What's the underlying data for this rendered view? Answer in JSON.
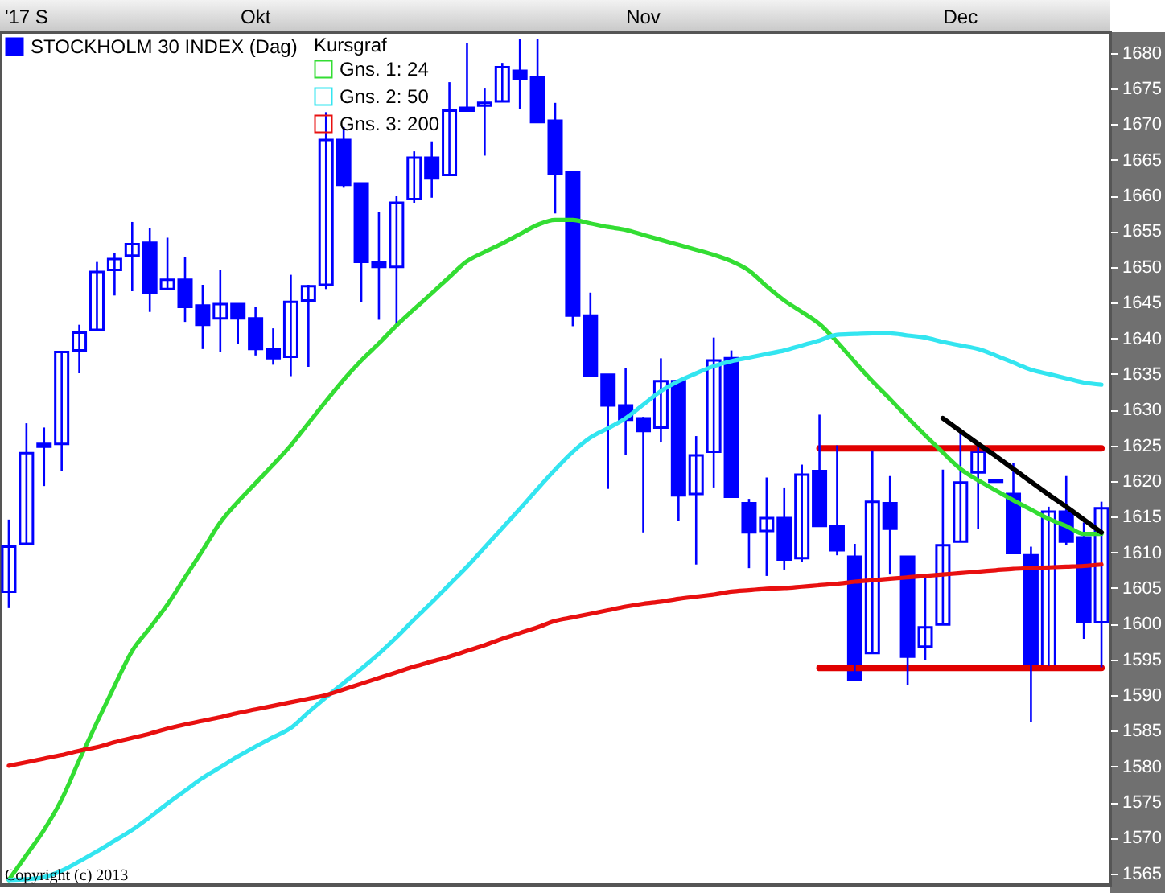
{
  "chart_data": {
    "type": "candlestick",
    "legend": "top left",
    "legend_title": "Kursgraf",
    "annotations": [
      "Copyright (c) 2013"
    ],
    "categories": [
      null,
      "'17 S",
      null,
      null,
      null,
      null,
      null,
      null,
      null,
      null,
      null,
      null,
      null,
      null,
      "Okt",
      null,
      null,
      null,
      null,
      null,
      null,
      null,
      null,
      null,
      null,
      null,
      null,
      null,
      null,
      null,
      null,
      null,
      null,
      null,
      null,
      null,
      "Nov",
      null,
      null,
      null,
      null,
      null,
      null,
      null,
      null,
      null,
      null,
      null,
      null,
      null,
      null,
      null,
      null,
      null,
      "Dec",
      null,
      null,
      null,
      null,
      null,
      null,
      null,
      null
    ],
    "ylim": [
      1563.4,
      1682.9
    ],
    "yticks": [
      1565,
      1570,
      1575,
      1580,
      1585,
      1590,
      1595,
      1600,
      1605,
      1610,
      1615,
      1620,
      1625,
      1630,
      1635,
      1640,
      1645,
      1650,
      1655,
      1660,
      1665,
      1670,
      1675,
      1680
    ],
    "series": [
      {
        "name": "STOCKHOLM 30 INDEX (Dag)",
        "color": "#0000ff",
        "ohlc": [
          [
            1604.5,
            1614.6,
            1602.2,
            1610.8
          ],
          [
            1611.2,
            1628.1,
            1611.2,
            1623.9
          ],
          [
            1625.2,
            1627.5,
            1619.3,
            1624.8
          ],
          [
            1625.2,
            1638.1,
            1621.4,
            1638.1
          ],
          [
            1638.3,
            1641.9,
            1635.1,
            1640.8
          ],
          [
            1641.2,
            1650.7,
            1641.2,
            1649.3
          ],
          [
            1649.6,
            1652.0,
            1646.0,
            1651.1
          ],
          [
            1651.6,
            1656.3,
            1646.6,
            1653.2
          ],
          [
            1653.4,
            1655.4,
            1643.7,
            1646.4
          ],
          [
            1646.9,
            1654.1,
            1646.9,
            1648.2
          ],
          [
            1648.2,
            1651.4,
            1642.3,
            1644.4
          ],
          [
            1644.6,
            1647.5,
            1638.5,
            1641.9
          ],
          [
            1642.8,
            1649.6,
            1638.1,
            1644.8
          ],
          [
            1644.8,
            1644.8,
            1639.2,
            1642.8
          ],
          [
            1642.8,
            1644.4,
            1637.6,
            1638.5
          ],
          [
            1638.5,
            1641.4,
            1636.3,
            1637.2
          ],
          [
            1637.4,
            1648.9,
            1634.7,
            1645.1
          ],
          [
            1645.3,
            1647.5,
            1636.0,
            1647.3
          ],
          [
            1647.5,
            1671.7,
            1646.9,
            1667.8
          ],
          [
            1667.8,
            1669.6,
            1661.1,
            1661.5
          ],
          [
            1661.7,
            1661.7,
            1645.1,
            1650.7
          ],
          [
            1650.7,
            1657.7,
            1642.6,
            1650.0
          ],
          [
            1650.0,
            1659.9,
            1641.7,
            1659.0
          ],
          [
            1659.5,
            1666.2,
            1659.0,
            1665.3
          ],
          [
            1665.3,
            1667.6,
            1659.7,
            1662.4
          ],
          [
            1662.9,
            1675.9,
            1662.9,
            1671.9
          ],
          [
            1672.3,
            1681.4,
            1671.9,
            1671.9
          ],
          [
            1672.6,
            1675.0,
            1665.6,
            1673.0
          ],
          [
            1673.2,
            1678.6,
            1673.2,
            1678.0
          ],
          [
            1677.5,
            1682.0,
            1672.1,
            1676.4
          ],
          [
            1676.6,
            1682.0,
            1670.3,
            1670.3
          ],
          [
            1670.5,
            1673.0,
            1657.5,
            1663.1
          ],
          [
            1663.3,
            1663.3,
            1641.7,
            1643.2
          ],
          [
            1643.2,
            1646.4,
            1634.7,
            1634.7
          ],
          [
            1634.9,
            1634.9,
            1618.9,
            1630.6
          ],
          [
            1630.6,
            1635.8,
            1623.6,
            1628.6
          ],
          [
            1628.8,
            1629.0,
            1612.8,
            1627.0
          ],
          [
            1627.5,
            1637.2,
            1625.4,
            1634.0
          ],
          [
            1634.0,
            1634.0,
            1614.4,
            1618.0
          ],
          [
            1618.2,
            1626.3,
            1608.3,
            1623.6
          ],
          [
            1624.1,
            1640.1,
            1619.1,
            1636.9
          ],
          [
            1637.2,
            1638.3,
            1617.8,
            1617.8
          ],
          [
            1616.9,
            1617.5,
            1607.8,
            1612.8
          ],
          [
            1613.0,
            1620.5,
            1606.7,
            1614.8
          ],
          [
            1614.8,
            1619.1,
            1607.6,
            1609.0
          ],
          [
            1609.2,
            1622.3,
            1608.7,
            1620.9
          ],
          [
            1621.4,
            1629.3,
            1613.7,
            1613.7
          ],
          [
            1613.7,
            1625.0,
            1609.6,
            1610.3
          ],
          [
            1609.4,
            1611.2,
            1592.1,
            1592.1
          ],
          [
            1595.9,
            1624.3,
            1595.9,
            1617.1
          ],
          [
            1616.9,
            1620.7,
            1606.9,
            1613.3
          ],
          [
            1609.4,
            1609.4,
            1591.4,
            1595.4
          ],
          [
            1596.8,
            1606.9,
            1594.9,
            1599.5
          ],
          [
            1599.9,
            1621.6,
            1599.9,
            1611.0
          ],
          [
            1611.5,
            1627.2,
            1611.5,
            1619.8
          ],
          [
            1621.2,
            1625.0,
            1613.3,
            1624.1
          ],
          [
            1620.1,
            1620.2,
            1619.8,
            1619.9
          ],
          [
            1618.2,
            1622.5,
            1609.9,
            1609.9
          ],
          [
            1609.6,
            1610.8,
            1586.2,
            1594.3
          ],
          [
            1594.1,
            1616.4,
            1594.1,
            1615.7
          ],
          [
            1615.7,
            1620.7,
            1611.0,
            1611.5
          ],
          [
            1612.1,
            1614.2,
            1597.9,
            1600.2
          ],
          [
            1600.2,
            1617.1,
            1593.9,
            1616.2
          ]
        ]
      },
      {
        "name": "Gns. 1: 24",
        "type": "line",
        "color": "#33dd33",
        "values": [
          1564.1,
          1567.6,
          1571.1,
          1575.4,
          1580.9,
          1586.2,
          1591.3,
          1596.2,
          1599.4,
          1602.7,
          1606.5,
          1610.3,
          1614.2,
          1617.1,
          1619.7,
          1622.3,
          1625.0,
          1628.1,
          1631.2,
          1634.2,
          1636.9,
          1639.3,
          1641.8,
          1644.1,
          1646.3,
          1648.6,
          1650.8,
          1652.1,
          1653.3,
          1654.6,
          1655.9,
          1656.6,
          1656.6,
          1656.1,
          1655.6,
          1655.2,
          1654.5,
          1653.8,
          1653.1,
          1652.4,
          1651.7,
          1650.8,
          1649.5,
          1647.3,
          1645.3,
          1643.7,
          1642.0,
          1639.5,
          1636.7,
          1634.0,
          1631.5,
          1628.9,
          1626.4,
          1624.0,
          1621.7,
          1620.1,
          1618.7,
          1617.3,
          1616.0,
          1614.7,
          1613.7,
          1612.6,
          1612.6
        ]
      },
      {
        "name": "Gns. 2: 50",
        "type": "line",
        "color": "#33e5f0",
        "values": [
          1564.1,
          1564.2,
          1564.5,
          1565.4,
          1566.7,
          1568.1,
          1569.6,
          1571.1,
          1572.9,
          1574.8,
          1576.6,
          1578.4,
          1579.9,
          1581.4,
          1582.8,
          1584.1,
          1585.4,
          1587.6,
          1589.7,
          1591.7,
          1593.7,
          1595.8,
          1598.1,
          1600.6,
          1603.0,
          1605.5,
          1608.0,
          1610.7,
          1613.4,
          1616.1,
          1618.9,
          1621.6,
          1624.1,
          1626.1,
          1627.4,
          1628.8,
          1630.7,
          1632.6,
          1634.0,
          1635.1,
          1636.1,
          1636.8,
          1637.3,
          1637.8,
          1638.3,
          1639.0,
          1639.7,
          1640.5,
          1640.6,
          1640.7,
          1640.7,
          1640.4,
          1640.1,
          1639.5,
          1639.0,
          1638.5,
          1637.6,
          1636.6,
          1635.6,
          1635.0,
          1634.4,
          1633.8,
          1633.5
        ]
      },
      {
        "name": "Gns. 3: 200",
        "type": "line",
        "color": "#e81010",
        "values": [
          1580.1,
          1580.6,
          1581.1,
          1581.6,
          1582.2,
          1582.7,
          1583.4,
          1584.0,
          1584.6,
          1585.3,
          1585.9,
          1586.4,
          1586.9,
          1587.5,
          1588.0,
          1588.5,
          1589.0,
          1589.5,
          1590.0,
          1590.8,
          1591.6,
          1592.4,
          1593.2,
          1594.0,
          1594.7,
          1595.4,
          1596.2,
          1597.0,
          1597.9,
          1598.7,
          1599.5,
          1600.4,
          1600.9,
          1601.4,
          1601.9,
          1602.4,
          1602.8,
          1603.1,
          1603.5,
          1603.8,
          1604.1,
          1604.5,
          1604.7,
          1604.9,
          1605.0,
          1605.2,
          1605.4,
          1605.6,
          1605.9,
          1606.1,
          1606.3,
          1606.5,
          1606.7,
          1606.9,
          1607.1,
          1607.3,
          1607.5,
          1607.7,
          1607.8,
          1607.9,
          1608.0,
          1608.1,
          1608.3
        ]
      },
      {
        "type": "line",
        "color": "#e00000",
        "values": [
          null,
          null,
          null,
          null,
          null,
          null,
          null,
          null,
          null,
          null,
          null,
          null,
          null,
          null,
          null,
          null,
          null,
          null,
          null,
          null,
          null,
          null,
          null,
          null,
          null,
          null,
          null,
          null,
          null,
          null,
          null,
          null,
          null,
          null,
          null,
          null,
          null,
          null,
          null,
          null,
          null,
          null,
          null,
          null,
          null,
          null,
          1624.6,
          1624.6,
          1624.6,
          1624.6,
          1624.6,
          1624.6,
          1624.6,
          1624.6,
          1624.6,
          1624.6,
          1624.6,
          1624.6,
          1624.6,
          1624.6,
          1624.6,
          1624.6,
          1624.6
        ]
      },
      {
        "type": "line",
        "color": "#e00000",
        "values": [
          null,
          null,
          null,
          null,
          null,
          null,
          null,
          null,
          null,
          null,
          null,
          null,
          null,
          null,
          null,
          null,
          null,
          null,
          null,
          null,
          null,
          null,
          null,
          null,
          null,
          null,
          null,
          null,
          null,
          null,
          null,
          null,
          null,
          null,
          null,
          null,
          null,
          null,
          null,
          null,
          null,
          null,
          null,
          null,
          null,
          null,
          1593.8,
          1593.8,
          1593.8,
          1593.8,
          1593.8,
          1593.8,
          1593.8,
          1593.8,
          1593.8,
          1593.8,
          1593.8,
          1593.8,
          1593.8,
          1593.8,
          1593.8,
          1593.8,
          1593.8
        ]
      },
      {
        "type": "line",
        "color": "#000000",
        "values": [
          null,
          null,
          null,
          null,
          null,
          null,
          null,
          null,
          null,
          null,
          null,
          null,
          null,
          null,
          null,
          null,
          null,
          null,
          null,
          null,
          null,
          null,
          null,
          null,
          null,
          null,
          null,
          null,
          null,
          null,
          null,
          null,
          null,
          null,
          null,
          null,
          null,
          null,
          null,
          null,
          null,
          null,
          null,
          null,
          null,
          null,
          null,
          null,
          null,
          null,
          null,
          null,
          null,
          1628.8,
          1627.0,
          1625.2,
          1623.5,
          1621.7,
          1619.9,
          1618.1,
          1616.4,
          1614.6,
          1612.8
        ]
      }
    ]
  }
}
